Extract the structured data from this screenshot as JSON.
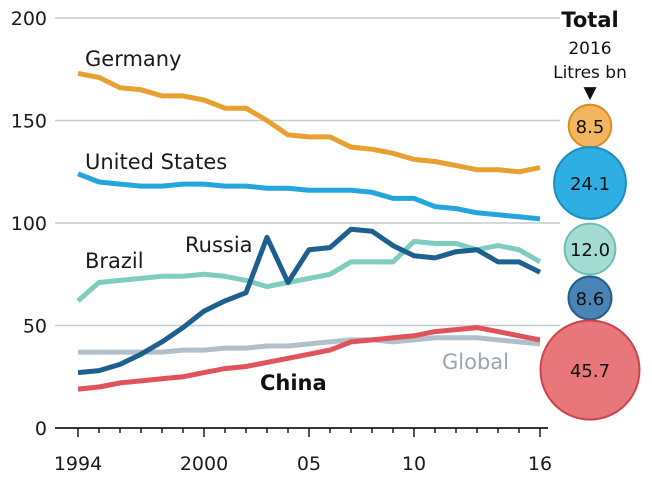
{
  "chart_data": {
    "type": "line",
    "title": "",
    "xlabel": "",
    "ylabel": "",
    "xlim": [
      1994,
      2016
    ],
    "ylim": [
      0,
      200
    ],
    "grid": true,
    "x_ticks": [
      1994,
      2000,
      2005,
      2010,
      2016
    ],
    "x_tick_labels": [
      "1994",
      "2000",
      "05",
      "10",
      "16"
    ],
    "y_ticks": [
      0,
      50,
      100,
      150,
      200
    ],
    "y_tick_labels": [
      "0",
      "50",
      "100",
      "150",
      "200"
    ],
    "series": [
      {
        "name": "Germany",
        "label_style": "normal",
        "color": "#e8a030",
        "x": [
          1994,
          1995,
          1996,
          1997,
          1998,
          1999,
          2000,
          2001,
          2002,
          2003,
          2004,
          2005,
          2006,
          2007,
          2008,
          2009,
          2010,
          2011,
          2012,
          2013,
          2014,
          2015,
          2016
        ],
        "values": [
          173,
          171,
          166,
          165,
          162,
          162,
          160,
          156,
          156,
          150,
          143,
          142,
          142,
          137,
          136,
          134,
          131,
          130,
          128,
          126,
          126,
          125,
          127
        ]
      },
      {
        "name": "United States",
        "label_style": "normal",
        "color": "#24a6dc",
        "x": [
          1994,
          1995,
          1996,
          1997,
          1998,
          1999,
          2000,
          2001,
          2002,
          2003,
          2004,
          2005,
          2006,
          2007,
          2008,
          2009,
          2010,
          2011,
          2012,
          2013,
          2014,
          2015,
          2016
        ],
        "values": [
          124,
          120,
          119,
          118,
          118,
          119,
          119,
          118,
          118,
          117,
          117,
          116,
          116,
          116,
          115,
          112,
          112,
          108,
          107,
          105,
          104,
          103,
          102
        ]
      },
      {
        "name": "Brazil",
        "label_style": "normal",
        "color": "#7ecdbf",
        "x": [
          1994,
          1995,
          1996,
          1997,
          1998,
          1999,
          2000,
          2001,
          2002,
          2003,
          2004,
          2005,
          2006,
          2007,
          2008,
          2009,
          2010,
          2011,
          2012,
          2013,
          2014,
          2015,
          2016
        ],
        "values": [
          62,
          71,
          72,
          73,
          74,
          74,
          75,
          74,
          72,
          69,
          71,
          73,
          75,
          81,
          81,
          81,
          91,
          90,
          90,
          87,
          89,
          87,
          81
        ]
      },
      {
        "name": "Russia",
        "label_style": "normal",
        "color": "#1d5f8f",
        "x": [
          1994,
          1995,
          1996,
          1997,
          1998,
          1999,
          2000,
          2001,
          2002,
          2003,
          2004,
          2005,
          2006,
          2007,
          2008,
          2009,
          2010,
          2011,
          2012,
          2013,
          2014,
          2015,
          2016
        ],
        "values": [
          27,
          28,
          31,
          36,
          42,
          49,
          57,
          62,
          66,
          93,
          71,
          87,
          88,
          97,
          96,
          89,
          84,
          83,
          86,
          87,
          81,
          81,
          76
        ]
      },
      {
        "name": "Global",
        "label_style": "normal",
        "color": "#b2bfc9",
        "x": [
          1994,
          1995,
          1996,
          1997,
          1998,
          1999,
          2000,
          2001,
          2002,
          2003,
          2004,
          2005,
          2006,
          2007,
          2008,
          2009,
          2010,
          2011,
          2012,
          2013,
          2014,
          2015,
          2016
        ],
        "values": [
          37,
          37,
          37,
          37,
          37,
          38,
          38,
          39,
          39,
          40,
          40,
          41,
          42,
          43,
          43,
          42,
          43,
          44,
          44,
          44,
          43,
          42,
          41
        ]
      },
      {
        "name": "China",
        "label_style": "bold",
        "color": "#e0535a",
        "x": [
          1994,
          1995,
          1996,
          1997,
          1998,
          1999,
          2000,
          2001,
          2002,
          2003,
          2004,
          2005,
          2006,
          2007,
          2008,
          2009,
          2010,
          2011,
          2012,
          2013,
          2014,
          2015,
          2016
        ],
        "values": [
          19,
          20,
          22,
          23,
          24,
          25,
          27,
          29,
          30,
          32,
          34,
          36,
          38,
          42,
          43,
          44,
          45,
          47,
          48,
          49,
          47,
          45,
          43
        ]
      }
    ],
    "totals": {
      "title": "Total",
      "subtitle_line1": "2016",
      "subtitle_line2": "Litres bn",
      "marker": "▼",
      "items": [
        {
          "name": "Germany",
          "value": 8.5,
          "label": "8.5",
          "fill": "#f2b660",
          "stroke": "#d98e22"
        },
        {
          "name": "United States",
          "value": 24.1,
          "label": "24.1",
          "fill": "#2eaee2",
          "stroke": "#1a8ec2"
        },
        {
          "name": "Brazil",
          "value": 12.0,
          "label": "12.0",
          "fill": "#a4dcd3",
          "stroke": "#6cc0b2"
        },
        {
          "name": "Russia",
          "value": 8.6,
          "label": "8.6",
          "fill": "#4a83b5",
          "stroke": "#245d8d"
        },
        {
          "name": "China",
          "value": 45.7,
          "label": "45.7",
          "fill": "#e8777b",
          "stroke": "#cc4449"
        }
      ]
    }
  }
}
